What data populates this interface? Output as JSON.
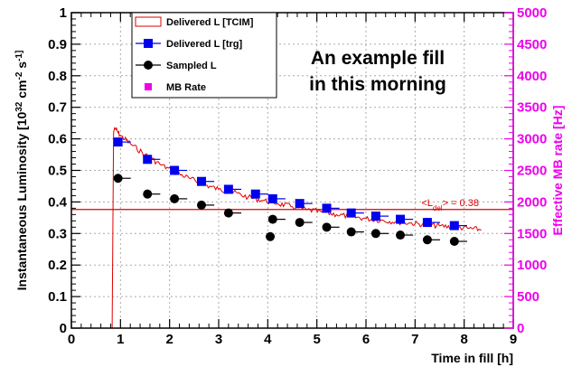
{
  "chart_data": {
    "type": "scatter",
    "xlabel": "Time in fill [h]",
    "ylabel": "Instantaneous Luminosity [10^32 cm^-2 s^-1]",
    "y2label": "Effective MB rate [Hz]",
    "xlim": [
      0,
      9
    ],
    "ylim": [
      0,
      1
    ],
    "y2lim": [
      0,
      5000
    ],
    "x_ticks": [
      "0",
      "1",
      "2",
      "3",
      "4",
      "5",
      "6",
      "7",
      "8",
      "9"
    ],
    "y_ticks": [
      "0",
      "0.1",
      "0.2",
      "0.3",
      "0.4",
      "0.5",
      "0.6",
      "0.7",
      "0.8",
      "0.9",
      "1"
    ],
    "y2_ticks": [
      "0",
      "500",
      "1000",
      "1500",
      "2000",
      "2500",
      "3000",
      "3500",
      "4000",
      "4500",
      "5000"
    ],
    "grid": true,
    "legend_placement": "top-left",
    "annotation": [
      "An example fill",
      "in this morning"
    ],
    "average_label": "<L_del> = 0.38",
    "average_value": 0.376,
    "colors": {
      "delivered_tcim": "#dd0000",
      "delivered_trg": "#0000ee",
      "sampled": "#000000",
      "mb_rate": "#ee00ee",
      "grid": "#aaaaaa"
    },
    "series": [
      {
        "name": "Delivered L [TCIM]",
        "style": "line",
        "x": [
          0.83,
          0.86,
          0.88,
          1.0,
          1.2,
          1.5,
          1.8,
          2.1,
          2.4,
          2.7,
          3.0,
          3.3,
          3.6,
          3.9,
          4.2,
          4.5,
          4.8,
          5.1,
          5.4,
          5.7,
          6.0,
          6.3,
          6.6,
          6.9,
          7.2,
          7.5,
          7.8,
          8.1,
          8.35
        ],
        "y": [
          0.0,
          0.62,
          0.635,
          0.61,
          0.585,
          0.55,
          0.52,
          0.495,
          0.475,
          0.455,
          0.44,
          0.43,
          0.415,
          0.405,
          0.395,
          0.385,
          0.375,
          0.368,
          0.36,
          0.353,
          0.347,
          0.342,
          0.337,
          0.333,
          0.328,
          0.324,
          0.32,
          0.316,
          0.312
        ]
      },
      {
        "name": "Delivered L [trg]",
        "style": "marker-square",
        "x": [
          0.95,
          1.55,
          2.1,
          2.65,
          3.2,
          3.75,
          4.1,
          4.65,
          5.2,
          5.7,
          6.2,
          6.7,
          7.25,
          7.8
        ],
        "y": [
          0.59,
          0.535,
          0.5,
          0.465,
          0.44,
          0.425,
          0.41,
          0.395,
          0.38,
          0.365,
          0.355,
          0.345,
          0.335,
          0.325
        ],
        "xerr": [
          0.26,
          0.26,
          0.26,
          0.26,
          0.26,
          0.26,
          0.26,
          0.26,
          0.26,
          0.26,
          0.26,
          0.26,
          0.26,
          0.26
        ]
      },
      {
        "name": "Sampled L",
        "style": "marker-circle",
        "x": [
          0.95,
          1.55,
          2.1,
          2.65,
          3.2,
          4.05,
          4.1,
          4.65,
          5.2,
          5.7,
          6.2,
          6.7,
          7.25,
          7.8
        ],
        "y": [
          0.475,
          0.425,
          0.41,
          0.39,
          0.365,
          0.29,
          0.345,
          0.335,
          0.32,
          0.305,
          0.3,
          0.295,
          0.28,
          0.275
        ],
        "xerr": [
          0.26,
          0.26,
          0.26,
          0.26,
          0.26,
          0,
          0.26,
          0.26,
          0.26,
          0.26,
          0.26,
          0.26,
          0.26,
          0.26
        ]
      },
      {
        "name": "MB Rate",
        "style": "marker-square",
        "x": [],
        "y": []
      }
    ]
  }
}
